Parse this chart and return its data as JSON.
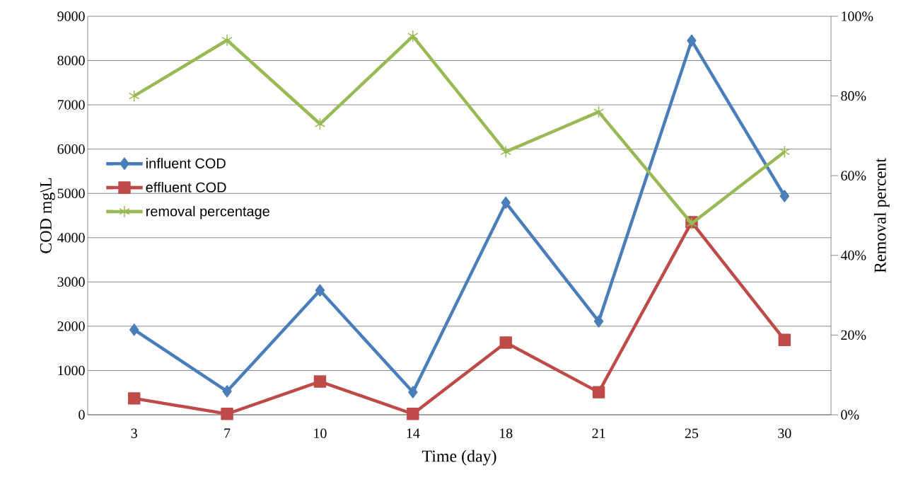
{
  "chart_data": {
    "type": "line",
    "xlabel": "Time (day)",
    "ylabel": "COD mg\\L",
    "y2label": "Removal percent",
    "categories": [
      "3",
      "7",
      "10",
      "14",
      "18",
      "21",
      "25",
      "30"
    ],
    "series": [
      {
        "name": "influent COD",
        "color": "#4a7ebb",
        "marker": "diamond",
        "values": [
          1920,
          530,
          2810,
          510,
          4790,
          2110,
          8450,
          4940
        ]
      },
      {
        "name": "effluent COD",
        "color": "#be4b48",
        "marker": "square",
        "values": [
          370,
          20,
          750,
          20,
          1630,
          510,
          4350,
          1690
        ]
      },
      {
        "name": "removal percentage",
        "color": "#98b954",
        "marker": "cross",
        "axis": "y2",
        "values": [
          80,
          94,
          73,
          95,
          66,
          76,
          48,
          66
        ]
      }
    ],
    "ylim": [
      0,
      9000
    ],
    "yticks": [
      0,
      1000,
      2000,
      3000,
      4000,
      5000,
      6000,
      7000,
      8000,
      9000
    ],
    "y2lim": [
      0,
      100
    ],
    "y2ticks": [
      {
        "value": 0,
        "label": "0%"
      },
      {
        "value": 20,
        "label": "20%"
      },
      {
        "value": 40,
        "label": "40%"
      },
      {
        "value": 60,
        "label": "60%"
      },
      {
        "value": 80,
        "label": "80%"
      },
      {
        "value": 100,
        "label": "100%"
      }
    ],
    "grid": "y",
    "legend": "left",
    "line_style": "solid"
  }
}
